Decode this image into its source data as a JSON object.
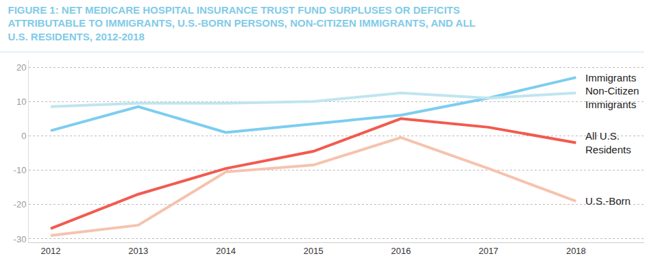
{
  "chart_data": {
    "type": "line",
    "title": "FIGURE 1: NET MEDICARE HOSPITAL INSURANCE TRUST FUND SURPLUSES OR DEFICITS ATTRIBUTABLE TO IMMIGRANTS, U.S.-BORN PERSONS, NON-CITIZEN IMMIGRANTS, AND ALL U.S. RESIDENTS, 2012-2018",
    "x": [
      2012,
      2013,
      2014,
      2015,
      2016,
      2017,
      2018
    ],
    "series": [
      {
        "name": "Immigrants",
        "color": "#7dcdf0",
        "values": [
          1.5,
          8.5,
          1,
          3.5,
          6,
          11,
          17
        ]
      },
      {
        "name": "Non-Citizen Immigrants",
        "color": "#c0e5ef",
        "values": [
          8.5,
          9.5,
          9.5,
          10,
          12.5,
          11,
          12.5
        ]
      },
      {
        "name": "All U.S. Residents",
        "color": "#f25a4f",
        "values": [
          -27,
          -17,
          -9.5,
          -4.5,
          5,
          2.5,
          -2
        ]
      },
      {
        "name": "U.S.-Born",
        "color": "#f5c3ae",
        "values": [
          -29,
          -26,
          -10.5,
          -8.5,
          -0.5,
          -9.5,
          -19
        ]
      }
    ],
    "xlim": [
      2011.75,
      2018.78
    ],
    "xticks": [
      2012,
      2013,
      2014,
      2015,
      2016,
      2017,
      2018
    ],
    "ylim": [
      -31,
      22
    ],
    "yticks": [
      -30,
      -20,
      -10,
      0,
      10,
      20
    ],
    "grid": true
  }
}
